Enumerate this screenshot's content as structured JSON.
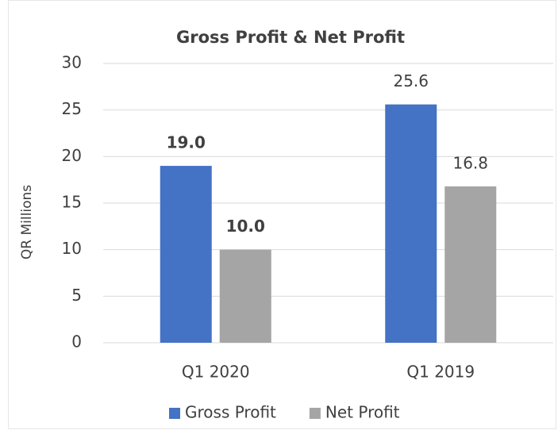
{
  "chart_data": {
    "type": "bar",
    "title": "Gross Profit & Net Profit",
    "y_label": "QR Millions",
    "categories": [
      "Q1 2020",
      "Q1 2019"
    ],
    "series": [
      {
        "name": "Gross Profit",
        "color": "#4472c4",
        "values": [
          19,
          25.6
        ],
        "value_labels": [
          "19.0",
          "25.6"
        ]
      },
      {
        "name": "Net Profit",
        "color": "#a5a5a5",
        "values": [
          10,
          16.8
        ],
        "value_labels": [
          "10.0",
          "16.8"
        ]
      }
    ],
    "value_label_weight": [
      "bold",
      "normal"
    ],
    "ylim": [
      0,
      30
    ],
    "yticks": [
      0,
      5,
      10,
      15,
      20,
      25,
      30
    ],
    "grid": true,
    "legend": "bottom"
  }
}
